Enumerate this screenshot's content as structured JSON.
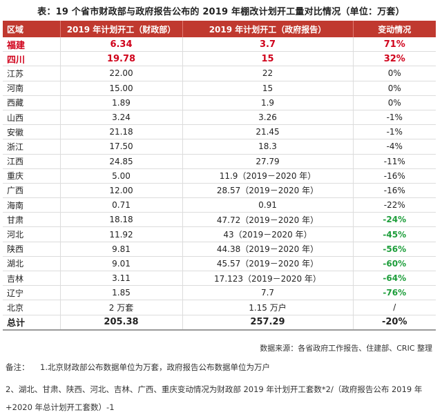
{
  "title": "表：19 个省市财政部与政府报告公布的 2019 年棚改计划开工量对比情况（单位：万套）",
  "headers": [
    "区域",
    "2019 年计划开工（财政部）",
    "2019 年计划开工（政府报告）",
    "变动情况"
  ],
  "rows": [
    {
      "region": "福建",
      "mof": "6.34",
      "gov": "3.7",
      "change": "71%",
      "style": "hl"
    },
    {
      "region": "四川",
      "mof": "19.78",
      "gov": "15",
      "change": "32%",
      "style": "hl"
    },
    {
      "region": "江苏",
      "mof": "22.00",
      "gov": "22",
      "change": "0%",
      "style": ""
    },
    {
      "region": "河南",
      "mof": "15.00",
      "gov": "15",
      "change": "0%",
      "style": ""
    },
    {
      "region": "西藏",
      "mof": "1.89",
      "gov": "1.9",
      "change": "0%",
      "style": ""
    },
    {
      "region": "山西",
      "mof": "3.24",
      "gov": "3.26",
      "change": "-1%",
      "style": ""
    },
    {
      "region": "安徽",
      "mof": "21.18",
      "gov": "21.45",
      "change": "-1%",
      "style": ""
    },
    {
      "region": "浙江",
      "mof": "17.50",
      "gov": "18.3",
      "change": "-4%",
      "style": ""
    },
    {
      "region": "江西",
      "mof": "24.85",
      "gov": "27.79",
      "change": "-11%",
      "style": ""
    },
    {
      "region": "重庆",
      "mof": "5.00",
      "gov": "11.9（2019－2020 年）",
      "change": "-16%",
      "style": ""
    },
    {
      "region": "广西",
      "mof": "12.00",
      "gov": "28.57（2019－2020 年）",
      "change": "-16%",
      "style": ""
    },
    {
      "region": "海南",
      "mof": "0.71",
      "gov": "0.91",
      "change": "-22%",
      "style": ""
    },
    {
      "region": "甘肃",
      "mof": "18.18",
      "gov": "47.72（2019－2020 年）",
      "change": "-24%",
      "style": "neg"
    },
    {
      "region": "河北",
      "mof": "11.92",
      "gov": "43（2019－2020 年）",
      "change": "-45%",
      "style": "neg"
    },
    {
      "region": "陕西",
      "mof": "9.81",
      "gov": "44.38（2019－2020 年）",
      "change": "-56%",
      "style": "neg"
    },
    {
      "region": "湖北",
      "mof": "9.01",
      "gov": "45.57（2019－2020 年）",
      "change": "-60%",
      "style": "neg"
    },
    {
      "region": "吉林",
      "mof": "3.11",
      "gov": "17.123（2019－2020 年）",
      "change": "-64%",
      "style": "neg"
    },
    {
      "region": "辽宁",
      "mof": "1.85",
      "gov": "7.7",
      "change": "-76%",
      "style": "neg"
    },
    {
      "region": "北京",
      "mof": "2 万套",
      "gov": "1.15 万户",
      "change": "/",
      "style": ""
    },
    {
      "region": "总计",
      "mof": "205.38",
      "gov": "257.29",
      "change": "-20%",
      "style": "total"
    }
  ],
  "source": "数据来源：各省政府工作报告、住建部、CRIC 整理",
  "note_label": "备注：",
  "note1": "1.北京财政部公布数据单位为万套，政府报告公布数据单位为万户",
  "note2": "2、湖北、甘肃、陕西、河北、吉林、广西、重庆变动情况为财政部 2019 年计划开工套数*2/（政府报告公布 2019 年",
  "note3": "+2020 年总计划开工套数）-1"
}
